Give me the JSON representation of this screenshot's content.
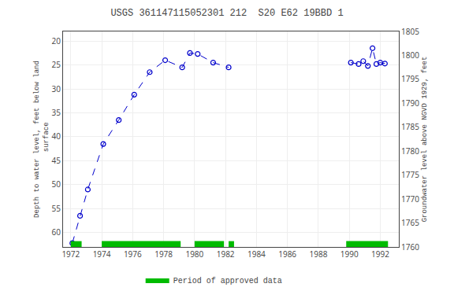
{
  "chart_data": {
    "type": "line",
    "title": "USGS 361147115052301 212  S20 E62 19BBD 1",
    "ylabel": "Depth to water level, feet below land\n surface",
    "y2label": "Groundwater level above NGVD 1929, feet",
    "series": [
      {
        "x": [
          1972.1,
          1972.6,
          1973.1,
          1974.1,
          1975.1,
          1976.1,
          1977.1,
          1978.1,
          1979.2,
          1979.7,
          1980.2,
          1981.2,
          1982.2
        ],
        "values": [
          62.2,
          56.5,
          51.0,
          41.5,
          36.5,
          31.2,
          26.5,
          24.0,
          25.5,
          22.5,
          22.7,
          24.5,
          25.5
        ],
        "color": "#0000cc",
        "line_style": "dashed",
        "marker": "open circle"
      },
      {
        "x": [
          1990.1,
          1990.6,
          1990.9,
          1991.2,
          1991.5,
          1991.75,
          1992.0,
          1992.3
        ],
        "values": [
          24.5,
          24.8,
          24.2,
          25.2,
          21.5,
          24.8,
          24.5,
          24.7
        ],
        "color": "#0000cc",
        "line_style": "dashed",
        "marker": "open circle"
      }
    ],
    "xlim": [
      1971.5,
      1993.2
    ],
    "xticks": [
      1972,
      1974,
      1976,
      1978,
      1980,
      1982,
      1984,
      1986,
      1988,
      1990,
      1992
    ],
    "ylim": [
      63.0,
      18.0
    ],
    "yticks": [
      20,
      25,
      30,
      35,
      40,
      45,
      50,
      55,
      60
    ],
    "y2lim": [
      1760,
      1805
    ],
    "y2ticks": [
      1760,
      1765,
      1770,
      1775,
      1780,
      1785,
      1790,
      1795,
      1800,
      1805
    ],
    "grid": true,
    "approved_periods": {
      "name": "Period of approved data",
      "color": "#00bb00",
      "periods": [
        [
          1972.0,
          1972.7
        ],
        [
          1974.0,
          1979.1
        ],
        [
          1980.0,
          1981.9
        ],
        [
          1982.2,
          1982.55
        ],
        [
          1989.8,
          1992.5
        ]
      ]
    },
    "legend": "bottom"
  }
}
